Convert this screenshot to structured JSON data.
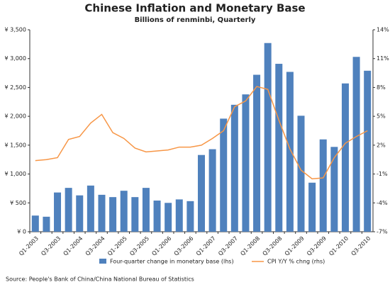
{
  "chart_data": {
    "type": "bar_line",
    "title": "Chinese Inflation and Monetary Base",
    "subtitle": "Billions of renminbi, Quarterly",
    "source": "Source: People's Bank of China/China National Bureau of Statistics",
    "categories": [
      "Q1-2003",
      null,
      "Q3-2003",
      null,
      "Q1-2004",
      null,
      "Q3-2004",
      null,
      "Q1-2005",
      null,
      "Q3-2005",
      null,
      "Q1-2006",
      null,
      "Q3-2006",
      null,
      "Q1-2007",
      null,
      "Q3-2007",
      null,
      "Q1-2008",
      null,
      "Q3-2008",
      null,
      "Q1-2009",
      null,
      "Q3-2009",
      null,
      "Q1-2010",
      null,
      "Q3-2010"
    ],
    "series": [
      {
        "name": "Four-quarter change in monetary base (lhs)",
        "color": "#4f81bd",
        "type": "bar",
        "values": [
          280,
          260,
          680,
          760,
          630,
          800,
          640,
          600,
          710,
          600,
          760,
          540,
          500,
          560,
          530,
          1330,
          1430,
          1960,
          2200,
          2380,
          2720,
          3270,
          2910,
          2770,
          2010,
          850,
          1600,
          1470,
          2570,
          3030,
          2790
        ]
      },
      {
        "name": "CPI Y/Y % chng (rhs)",
        "color": "#f79646",
        "type": "line",
        "axis": "y2",
        "values": [
          0.4,
          0.5,
          0.7,
          2.6,
          2.9,
          4.3,
          5.2,
          3.3,
          2.7,
          1.7,
          1.3,
          1.4,
          1.5,
          1.8,
          1.8,
          2.0,
          2.7,
          3.5,
          6.0,
          6.6,
          8.1,
          7.8,
          4.6,
          1.6,
          -0.6,
          -1.5,
          -1.4,
          0.7,
          2.2,
          2.9,
          3.5
        ]
      }
    ],
    "ylim": [
      0,
      3500
    ],
    "yticks": [
      {
        "value": 0,
        "label": "¥ 0"
      },
      {
        "value": 500,
        "label": "¥ 500"
      },
      {
        "value": 1000,
        "label": "¥ 1,000"
      },
      {
        "value": 1500,
        "label": "¥ 1,500"
      },
      {
        "value": 2000,
        "label": "¥ 2,000"
      },
      {
        "value": 2500,
        "label": "¥ 2,500"
      },
      {
        "value": 3000,
        "label": "¥ 3,000"
      },
      {
        "value": 3500,
        "label": "¥ 3,500"
      }
    ],
    "y2lim": [
      -7,
      14
    ],
    "y2ticks": [
      {
        "value": -7,
        "label": "-7%"
      },
      {
        "value": -4,
        "label": "-4%"
      },
      {
        "value": -1,
        "label": "-1%"
      },
      {
        "value": 2,
        "label": "2%"
      },
      {
        "value": 5,
        "label": "5%"
      },
      {
        "value": 8,
        "label": "8%"
      },
      {
        "value": 11,
        "label": "11%"
      },
      {
        "value": 14,
        "label": "14%"
      }
    ],
    "grid": false
  }
}
